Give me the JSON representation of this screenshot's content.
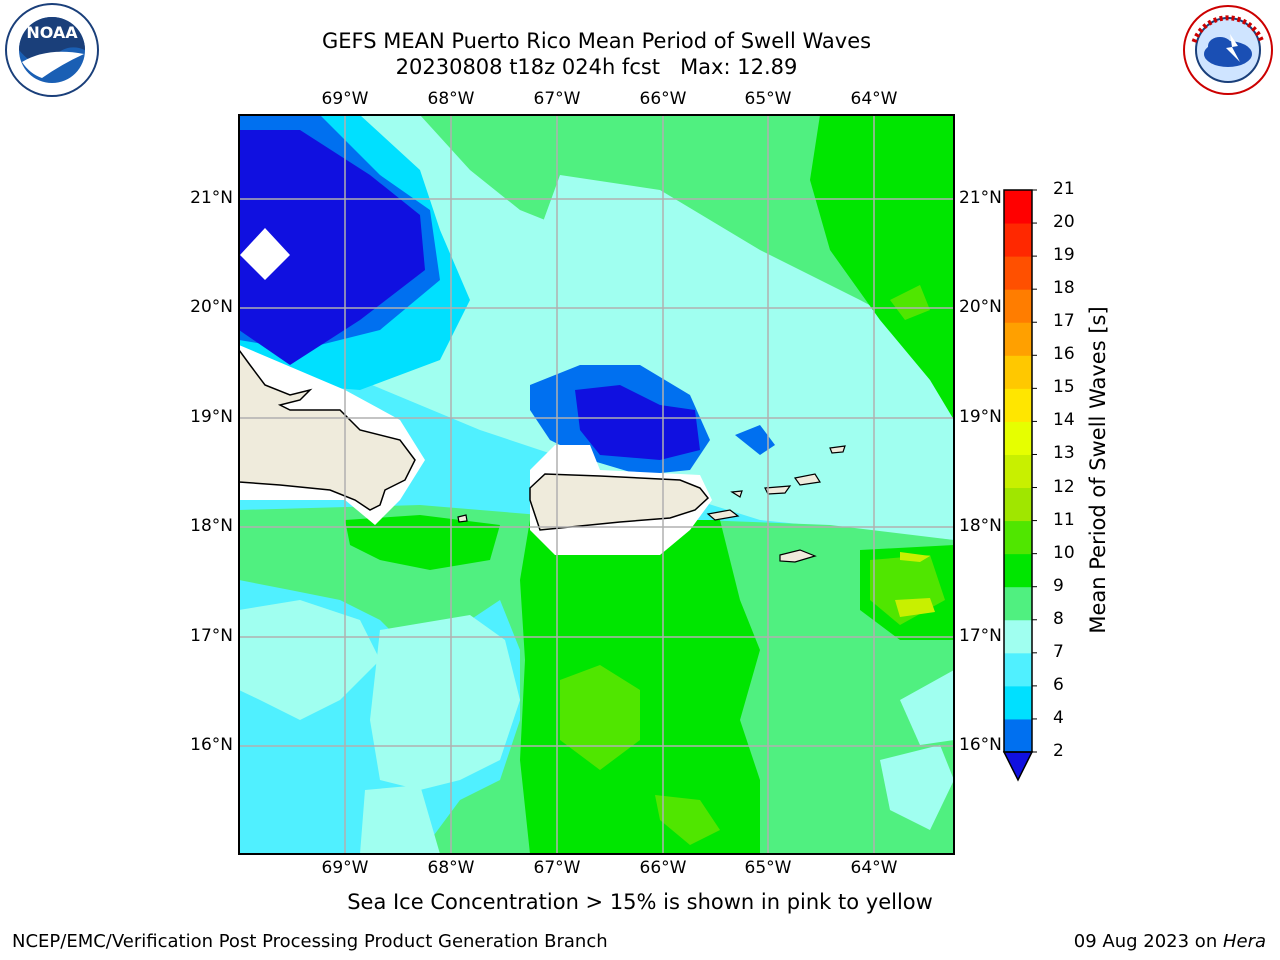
{
  "header": {
    "title_line1": "GEFS MEAN Puerto Rico Mean Period of Swell Waves",
    "title_line2": "20230808 t18z 024h fcst   Max: 12.89"
  },
  "logos": {
    "left": {
      "icon": "noaa-logo",
      "text": "NOAA"
    },
    "right": {
      "icon": "nws-logo",
      "text": "NATIONAL WEATHER SERVICE"
    }
  },
  "map": {
    "lon_labels": [
      "69°W",
      "68°W",
      "67°W",
      "66°W",
      "65°W",
      "64°W"
    ],
    "lat_labels": [
      "21°N",
      "20°N",
      "19°N",
      "18°N",
      "17°N",
      "16°N"
    ],
    "lon_range": [
      -70.0,
      -63.25
    ],
    "lat_range": [
      15.0,
      21.75
    ]
  },
  "colorbar": {
    "title": "Mean Period of Swell Waves [s]",
    "ticks": [
      "2",
      "4",
      "6",
      "7",
      "8",
      "9",
      "10",
      "11",
      "12",
      "13",
      "14",
      "15",
      "16",
      "17",
      "18",
      "19",
      "20",
      "21"
    ],
    "colors": [
      "#0070f0",
      "#00e0ff",
      "#50f0ff",
      "#a0fff0",
      "#50f080",
      "#00e600",
      "#50e600",
      "#a0e600",
      "#c8f000",
      "#e6ff00",
      "#ffe600",
      "#ffc800",
      "#ffa000",
      "#ff7d00",
      "#ff5000",
      "#ff2800",
      "#ff0000"
    ],
    "under_color": "#1010e0"
  },
  "note": "Sea Ice Concentration > 15% is shown in pink to yellow",
  "footer": {
    "left": "NCEP/EMC/Verification Post Processing Product Generation Branch",
    "date": "09 Aug 2023 on ",
    "machine": "Hera"
  }
}
